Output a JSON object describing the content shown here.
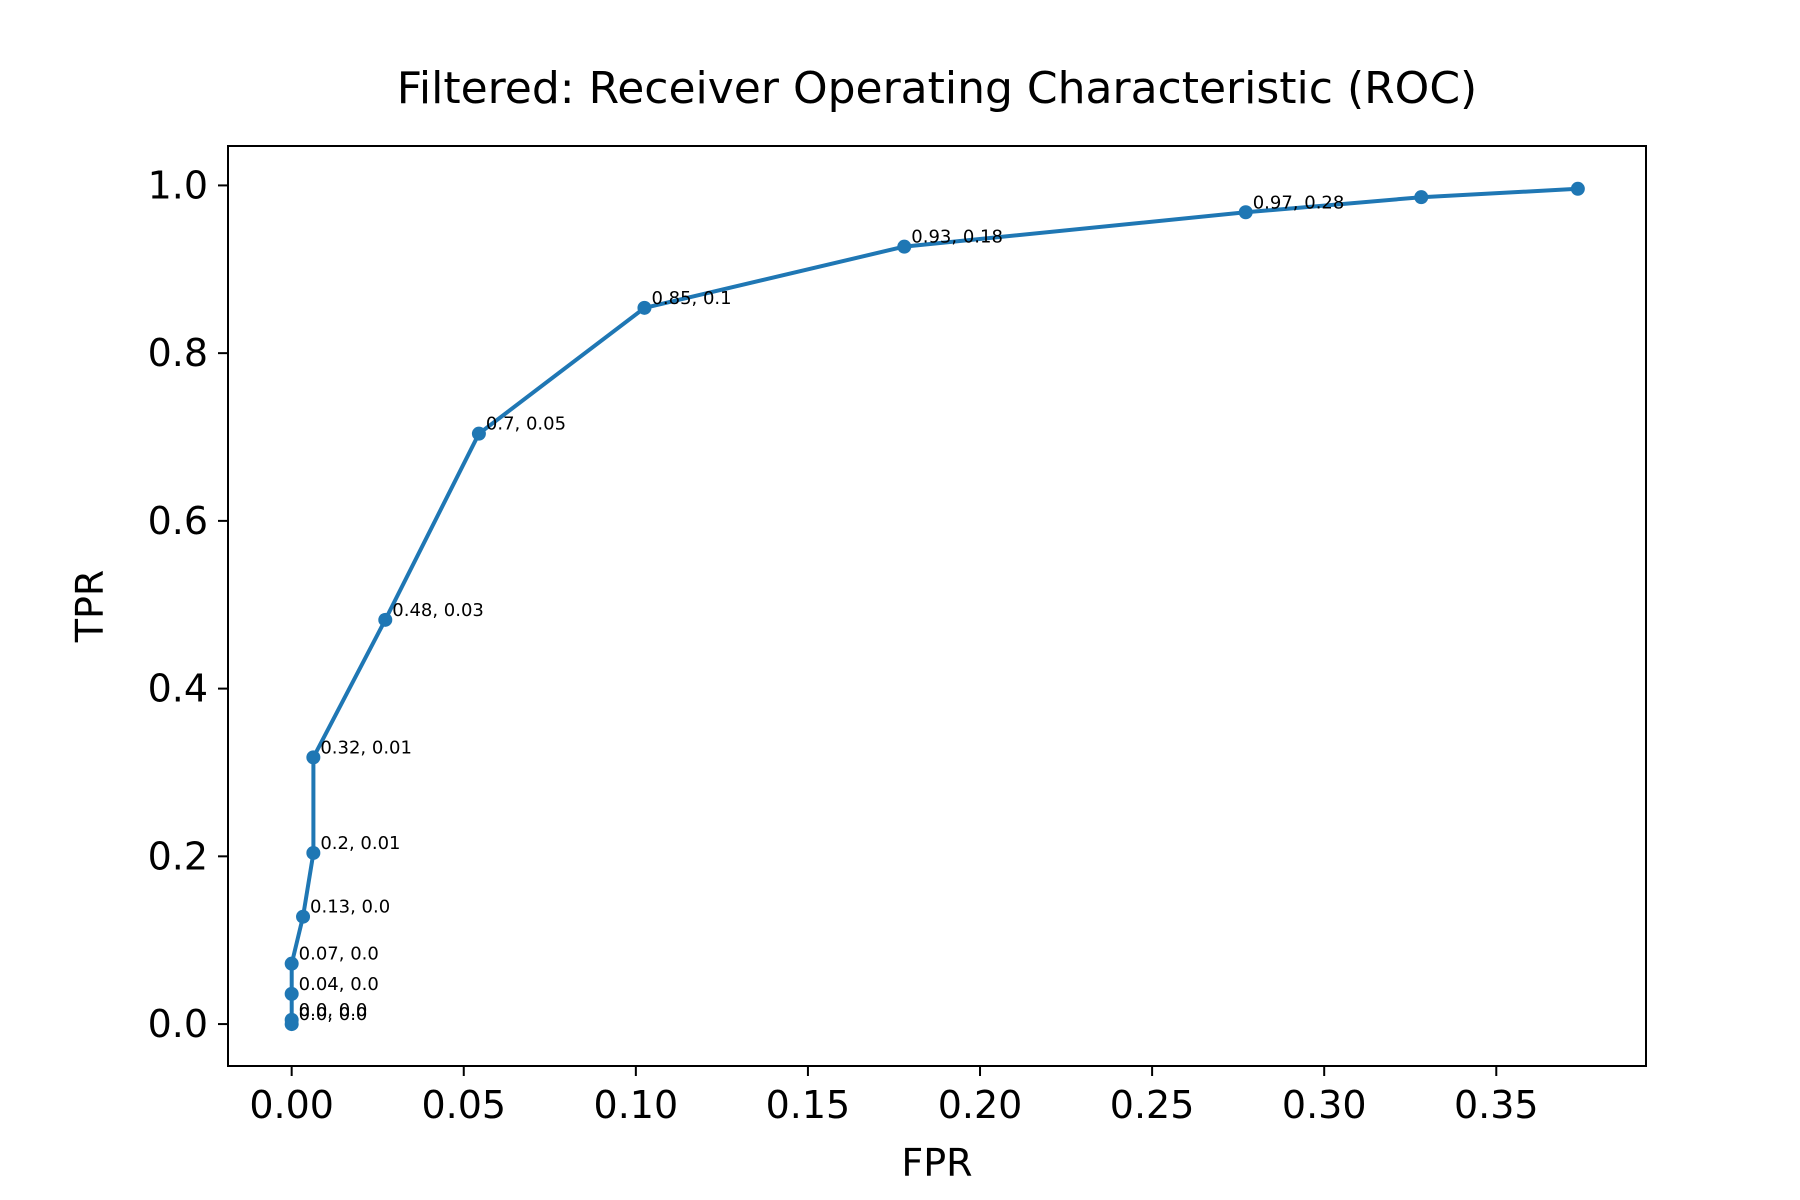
{
  "chart_data": {
    "type": "line",
    "title": "Filtered: Receiver Operating Characteristic (ROC)",
    "xlabel": "FPR",
    "ylabel": "TPR",
    "xlim": [
      -0.0185,
      0.3935
    ],
    "ylim": [
      -0.05,
      1.047
    ],
    "xticks": [
      0.0,
      0.05,
      0.1,
      0.15,
      0.2,
      0.25,
      0.3,
      0.35
    ],
    "xtick_labels": [
      "0.00",
      "0.05",
      "0.10",
      "0.15",
      "0.20",
      "0.25",
      "0.30",
      "0.35"
    ],
    "yticks": [
      0.0,
      0.2,
      0.4,
      0.6,
      0.8,
      1.0
    ],
    "ytick_labels": [
      "0.0",
      "0.2",
      "0.4",
      "0.6",
      "0.8",
      "1.0"
    ],
    "grid": false,
    "series": [
      {
        "color": "#1f77b4",
        "marker": "circle",
        "points": [
          {
            "x": 0.0,
            "y": 0.0,
            "label": "0.0, 0.0"
          },
          {
            "x": 0.0,
            "y": 0.005,
            "label": "0.0, 0.0"
          },
          {
            "x": 0.0,
            "y": 0.036,
            "label": "0.04, 0.0"
          },
          {
            "x": 0.0,
            "y": 0.072,
            "label": "0.07, 0.0"
          },
          {
            "x": 0.0033,
            "y": 0.128,
            "label": "0.13, 0.0"
          },
          {
            "x": 0.0063,
            "y": 0.204,
            "label": "0.2, 0.01"
          },
          {
            "x": 0.0063,
            "y": 0.318,
            "label": "0.32, 0.01"
          },
          {
            "x": 0.0272,
            "y": 0.482,
            "label": "0.48, 0.03"
          },
          {
            "x": 0.0544,
            "y": 0.704,
            "label": "0.7, 0.05"
          },
          {
            "x": 0.1025,
            "y": 0.854,
            "label": "0.85, 0.1"
          },
          {
            "x": 0.178,
            "y": 0.927,
            "label": "0.93, 0.18"
          },
          {
            "x": 0.2772,
            "y": 0.968,
            "label": "0.97, 0.28"
          },
          {
            "x": 0.3282,
            "y": 0.986,
            "label": ""
          },
          {
            "x": 0.3737,
            "y": 0.996,
            "label": ""
          }
        ]
      }
    ]
  }
}
